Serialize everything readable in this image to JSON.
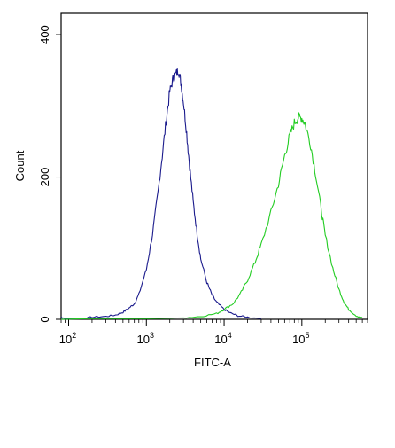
{
  "chart_data": {
    "type": "line",
    "xlabel": "FITC-A",
    "ylabel": "Count",
    "x_scale": "log",
    "xlim": [
      80,
      700000
    ],
    "ylim": [
      0,
      430
    ],
    "x_ticks": [
      {
        "value": 100,
        "base": "10",
        "exp": "2"
      },
      {
        "value": 1000,
        "base": "10",
        "exp": "3"
      },
      {
        "value": 10000,
        "base": "10",
        "exp": "4"
      },
      {
        "value": 100000,
        "base": "10",
        "exp": "5"
      }
    ],
    "y_ticks": [
      {
        "value": 0,
        "label": "0"
      },
      {
        "value": 200,
        "label": "200"
      },
      {
        "value": 400,
        "label": "400"
      }
    ],
    "grid": false,
    "legend": "none",
    "series": [
      {
        "color": "#1a1a8c",
        "points": [
          [
            80,
            3
          ],
          [
            90,
            1
          ],
          [
            120,
            1
          ],
          [
            150,
            1
          ],
          [
            200,
            3
          ],
          [
            300,
            4
          ],
          [
            400,
            6
          ],
          [
            500,
            10
          ],
          [
            600,
            16
          ],
          [
            700,
            22
          ],
          [
            800,
            35
          ],
          [
            1000,
            70
          ],
          [
            1200,
            120
          ],
          [
            1400,
            175
          ],
          [
            1600,
            230
          ],
          [
            1800,
            280
          ],
          [
            2000,
            320
          ],
          [
            2200,
            338
          ],
          [
            2400,
            345
          ],
          [
            2600,
            350
          ],
          [
            2800,
            330
          ],
          [
            3000,
            305
          ],
          [
            3300,
            262
          ],
          [
            3600,
            215
          ],
          [
            4000,
            165
          ],
          [
            4500,
            120
          ],
          [
            5000,
            85
          ],
          [
            6000,
            52
          ],
          [
            7000,
            34
          ],
          [
            8000,
            24
          ],
          [
            10000,
            14
          ],
          [
            12000,
            9
          ],
          [
            15000,
            5
          ],
          [
            20000,
            3
          ],
          [
            30000,
            1
          ]
        ]
      },
      {
        "color": "#22cc22",
        "points": [
          [
            80,
            0
          ],
          [
            200,
            1
          ],
          [
            1000,
            1
          ],
          [
            3000,
            2
          ],
          [
            5000,
            4
          ],
          [
            8000,
            8
          ],
          [
            10000,
            14
          ],
          [
            13000,
            22
          ],
          [
            16000,
            35
          ],
          [
            20000,
            55
          ],
          [
            25000,
            80
          ],
          [
            30000,
            105
          ],
          [
            40000,
            150
          ],
          [
            50000,
            190
          ],
          [
            60000,
            230
          ],
          [
            70000,
            258
          ],
          [
            80000,
            276
          ],
          [
            90000,
            284
          ],
          [
            100000,
            283
          ],
          [
            110000,
            275
          ],
          [
            130000,
            245
          ],
          [
            150000,
            205
          ],
          [
            180000,
            150
          ],
          [
            200000,
            118
          ],
          [
            250000,
            72
          ],
          [
            300000,
            42
          ],
          [
            350000,
            24
          ],
          [
            400000,
            14
          ],
          [
            500000,
            5
          ],
          [
            600000,
            2
          ]
        ]
      }
    ]
  }
}
